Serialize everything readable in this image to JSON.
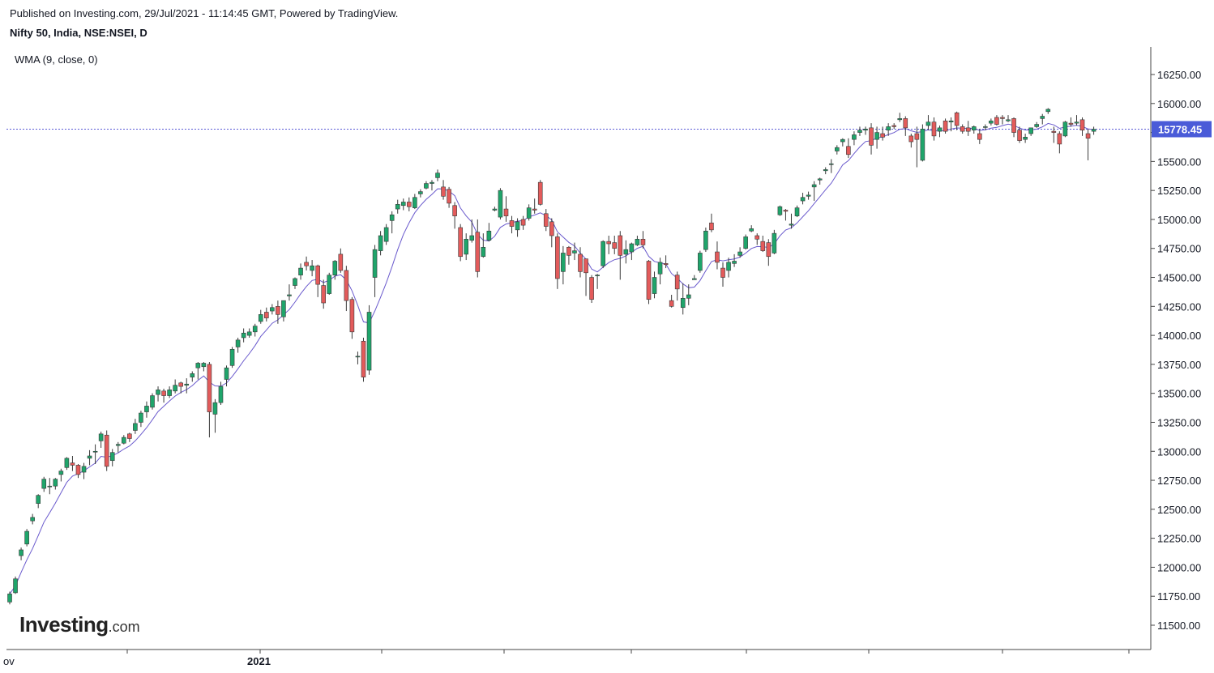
{
  "header": {
    "published": "Published on Investing.com, 29/Jul/2021 - 11:14:45 GMT, Powered by TradingView.",
    "instrument": "Nifty 50, India, NSE:NSEI, D",
    "indicator": "WMA (9, close, 0)"
  },
  "logo": {
    "main": "Investing",
    "suffix": ".com"
  },
  "colors": {
    "up": "#1fa56b",
    "down": "#e35b5b",
    "wick": "#3a3a3a",
    "wma": "#6a5acd",
    "price_line": "#5b5bd6",
    "price_label_bg": "#4a5bd8",
    "axis": "#444444",
    "text": "#131722"
  },
  "chart_data": {
    "type": "candlestick",
    "ylim": [
      11300,
      16500
    ],
    "y_ticks": [
      "16250.00",
      "16000.00",
      "15750.00",
      "15500.00",
      "15250.00",
      "15000.00",
      "14750.00",
      "14500.00",
      "14250.00",
      "14000.00",
      "13750.00",
      "13500.00",
      "13250.00",
      "13000.00",
      "12750.00",
      "12500.00",
      "12250.00",
      "12000.00",
      "11750.00",
      "11500.00"
    ],
    "x_labels": [
      {
        "index": 0,
        "text": "ov"
      },
      {
        "index": 42,
        "text": "2021"
      }
    ],
    "last_price_label": "15778.45",
    "last_price": 15778.45,
    "candles": [
      [
        11700,
        11790,
        11680,
        11770
      ],
      [
        11780,
        11920,
        11770,
        11900
      ],
      [
        12100,
        12170,
        12060,
        12150
      ],
      [
        12200,
        12330,
        12180,
        12310
      ],
      [
        12400,
        12460,
        12370,
        12430
      ],
      [
        12550,
        12630,
        12510,
        12620
      ],
      [
        12680,
        12780,
        12650,
        12760
      ],
      [
        12700,
        12770,
        12630,
        12700
      ],
      [
        12700,
        12770,
        12670,
        12760
      ],
      [
        12800,
        12850,
        12740,
        12830
      ],
      [
        12860,
        12950,
        12840,
        12940
      ],
      [
        12900,
        12960,
        12830,
        12880
      ],
      [
        12880,
        12890,
        12770,
        12800
      ],
      [
        12820,
        12900,
        12760,
        12870
      ],
      [
        12940,
        13010,
        12880,
        12960
      ],
      [
        13000,
        13060,
        12890,
        13000
      ],
      [
        13090,
        13170,
        13030,
        13150
      ],
      [
        13140,
        13180,
        12830,
        12870
      ],
      [
        12920,
        13020,
        12870,
        12990
      ],
      [
        13050,
        13080,
        12990,
        13060
      ],
      [
        13070,
        13140,
        13060,
        13120
      ],
      [
        13150,
        13160,
        13080,
        13110
      ],
      [
        13180,
        13280,
        13150,
        13240
      ],
      [
        13250,
        13350,
        13210,
        13330
      ],
      [
        13340,
        13430,
        13290,
        13390
      ],
      [
        13380,
        13500,
        13360,
        13480
      ],
      [
        13490,
        13560,
        13430,
        13530
      ],
      [
        13520,
        13540,
        13420,
        13480
      ],
      [
        13480,
        13560,
        13460,
        13530
      ],
      [
        13520,
        13620,
        13500,
        13570
      ],
      [
        13590,
        13600,
        13500,
        13560
      ],
      [
        13570,
        13630,
        13500,
        13580
      ],
      [
        13640,
        13690,
        13600,
        13670
      ],
      [
        13720,
        13770,
        13620,
        13760
      ],
      [
        13730,
        13770,
        13690,
        13760
      ],
      [
        13750,
        13770,
        13120,
        13340
      ],
      [
        13320,
        13450,
        13160,
        13420
      ],
      [
        13420,
        13600,
        13400,
        13560
      ],
      [
        13620,
        13740,
        13560,
        13720
      ],
      [
        13740,
        13900,
        13720,
        13880
      ],
      [
        13900,
        13980,
        13850,
        13960
      ],
      [
        13980,
        14060,
        13940,
        14020
      ],
      [
        14000,
        14060,
        13980,
        14030
      ],
      [
        14030,
        14100,
        13990,
        14080
      ],
      [
        14120,
        14220,
        14100,
        14180
      ],
      [
        14200,
        14240,
        14120,
        14150
      ],
      [
        14210,
        14270,
        14180,
        14240
      ],
      [
        14250,
        14300,
        14100,
        14180
      ],
      [
        14160,
        14300,
        14120,
        14300
      ],
      [
        14340,
        14440,
        14300,
        14350
      ],
      [
        14430,
        14500,
        14400,
        14490
      ],
      [
        14520,
        14620,
        14480,
        14580
      ],
      [
        14630,
        14680,
        14560,
        14600
      ],
      [
        14560,
        14650,
        14510,
        14600
      ],
      [
        14600,
        14610,
        14330,
        14440
      ],
      [
        14430,
        14480,
        14230,
        14280
      ],
      [
        14360,
        14540,
        14350,
        14520
      ],
      [
        14520,
        14650,
        14480,
        14640
      ],
      [
        14700,
        14750,
        14540,
        14560
      ],
      [
        14560,
        14600,
        14210,
        14300
      ],
      [
        14310,
        14330,
        13970,
        14030
      ],
      [
        13820,
        13860,
        13750,
        13820
      ],
      [
        13950,
        13980,
        13600,
        13640
      ],
      [
        13700,
        14260,
        13660,
        14200
      ],
      [
        14500,
        14780,
        14330,
        14740
      ],
      [
        14730,
        14900,
        14690,
        14860
      ],
      [
        14810,
        14960,
        14780,
        14930
      ],
      [
        14990,
        15070,
        14880,
        15040
      ],
      [
        15090,
        15170,
        15050,
        15130
      ],
      [
        15120,
        15180,
        15080,
        15150
      ],
      [
        15150,
        15190,
        15070,
        15110
      ],
      [
        15100,
        15220,
        15090,
        15190
      ],
      [
        15220,
        15260,
        15190,
        15240
      ],
      [
        15270,
        15330,
        15260,
        15310
      ],
      [
        15310,
        15340,
        15250,
        15320
      ],
      [
        15360,
        15430,
        15330,
        15400
      ],
      [
        15280,
        15340,
        15170,
        15200
      ],
      [
        15260,
        15280,
        15100,
        15140
      ],
      [
        15120,
        15150,
        14920,
        15030
      ],
      [
        14930,
        14960,
        14640,
        14680
      ],
      [
        14700,
        14880,
        14650,
        14830
      ],
      [
        14820,
        15000,
        14800,
        14860
      ],
      [
        14890,
        15000,
        14500,
        14550
      ],
      [
        14680,
        14880,
        14670,
        14760
      ],
      [
        14820,
        14970,
        14810,
        14900
      ],
      [
        15080,
        15110,
        15070,
        15090
      ],
      [
        15020,
        15270,
        15000,
        15250
      ],
      [
        15090,
        15200,
        14980,
        15030
      ],
      [
        14990,
        15030,
        14880,
        14940
      ],
      [
        14910,
        15010,
        14850,
        14980
      ],
      [
        15000,
        15030,
        14910,
        14950
      ],
      [
        15010,
        15130,
        14990,
        15100
      ],
      [
        15090,
        15180,
        15050,
        15080
      ],
      [
        15320,
        15340,
        15120,
        15130
      ],
      [
        15050,
        15090,
        14900,
        14940
      ],
      [
        14980,
        15010,
        14760,
        14860
      ],
      [
        14850,
        14880,
        14400,
        14490
      ],
      [
        14550,
        14770,
        14440,
        14710
      ],
      [
        14760,
        14770,
        14610,
        14690
      ],
      [
        14710,
        14800,
        14650,
        14730
      ],
      [
        14700,
        14760,
        14500,
        14550
      ],
      [
        14660,
        14660,
        14340,
        14540
      ],
      [
        14500,
        14520,
        14280,
        14310
      ],
      [
        14520,
        14530,
        14400,
        14520
      ],
      [
        14600,
        14820,
        14580,
        14810
      ],
      [
        14810,
        14860,
        14700,
        14790
      ],
      [
        14800,
        14860,
        14700,
        14750
      ],
      [
        14860,
        14900,
        14480,
        14690
      ],
      [
        14700,
        14820,
        14620,
        14740
      ],
      [
        14720,
        14800,
        14650,
        14790
      ],
      [
        14780,
        14860,
        14770,
        14830
      ],
      [
        14830,
        14900,
        14750,
        14780
      ],
      [
        14640,
        14650,
        14270,
        14310
      ],
      [
        14360,
        14550,
        14320,
        14500
      ],
      [
        14530,
        14670,
        14440,
        14630
      ],
      [
        14620,
        14690,
        14580,
        14610
      ],
      [
        14300,
        14350,
        14240,
        14250
      ],
      [
        14520,
        14550,
        14300,
        14400
      ],
      [
        14240,
        14450,
        14180,
        14320
      ],
      [
        14320,
        14440,
        14260,
        14350
      ],
      [
        14480,
        14520,
        14480,
        14490
      ],
      [
        14560,
        14730,
        14540,
        14710
      ],
      [
        14740,
        14930,
        14720,
        14900
      ],
      [
        14970,
        15050,
        14890,
        14910
      ],
      [
        14720,
        14810,
        14570,
        14630
      ],
      [
        14580,
        14630,
        14420,
        14500
      ],
      [
        14560,
        14670,
        14500,
        14630
      ],
      [
        14620,
        14700,
        14590,
        14640
      ],
      [
        14690,
        14760,
        14670,
        14720
      ],
      [
        14750,
        14870,
        14740,
        14850
      ],
      [
        14900,
        14950,
        14890,
        14920
      ],
      [
        14860,
        14880,
        14780,
        14830
      ],
      [
        14810,
        14860,
        14720,
        14730
      ],
      [
        14800,
        14830,
        14600,
        14680
      ],
      [
        14710,
        14910,
        14700,
        14880
      ],
      [
        15040,
        15120,
        15030,
        15110
      ],
      [
        15080,
        15090,
        14990,
        15070
      ],
      [
        14950,
        15050,
        14920,
        14960
      ],
      [
        15030,
        15120,
        15020,
        15100
      ],
      [
        15160,
        15230,
        15130,
        15190
      ],
      [
        15200,
        15240,
        15170,
        15210
      ],
      [
        15280,
        15330,
        15160,
        15300
      ],
      [
        15340,
        15360,
        15300,
        15350
      ],
      [
        15420,
        15450,
        15390,
        15430
      ],
      [
        15480,
        15520,
        15400,
        15480
      ],
      [
        15590,
        15640,
        15560,
        15620
      ],
      [
        15670,
        15700,
        15630,
        15690
      ],
      [
        15630,
        15700,
        15530,
        15560
      ],
      [
        15690,
        15760,
        15640,
        15730
      ],
      [
        15750,
        15800,
        15720,
        15770
      ],
      [
        15770,
        15800,
        15730,
        15780
      ],
      [
        15790,
        15830,
        15560,
        15640
      ],
      [
        15690,
        15800,
        15610,
        15750
      ],
      [
        15740,
        15800,
        15680,
        15710
      ],
      [
        15770,
        15830,
        15720,
        15800
      ],
      [
        15810,
        15830,
        15780,
        15800
      ],
      [
        15860,
        15920,
        15840,
        15870
      ],
      [
        15870,
        15890,
        15720,
        15790
      ],
      [
        15720,
        15740,
        15620,
        15670
      ],
      [
        15740,
        15800,
        15450,
        15690
      ],
      [
        15510,
        15820,
        15500,
        15780
      ],
      [
        15810,
        15900,
        15770,
        15840
      ],
      [
        15840,
        15880,
        15680,
        15720
      ],
      [
        15760,
        15810,
        15710,
        15790
      ],
      [
        15850,
        15870,
        15740,
        15760
      ],
      [
        15840,
        15880,
        15760,
        15850
      ],
      [
        15920,
        15930,
        15770,
        15810
      ],
      [
        15800,
        15820,
        15740,
        15760
      ],
      [
        15790,
        15850,
        15720,
        15760
      ],
      [
        15770,
        15810,
        15740,
        15800
      ],
      [
        15740,
        15780,
        15650,
        15690
      ],
      [
        15800,
        15820,
        15770,
        15800
      ],
      [
        15830,
        15870,
        15810,
        15850
      ],
      [
        15880,
        15900,
        15810,
        15820
      ],
      [
        15880,
        15900,
        15820,
        15870
      ],
      [
        15850,
        15900,
        15840,
        15860
      ],
      [
        15870,
        15880,
        15710,
        15750
      ],
      [
        15770,
        15800,
        15660,
        15680
      ],
      [
        15690,
        15740,
        15660,
        15710
      ],
      [
        15740,
        15790,
        15720,
        15790
      ],
      [
        15800,
        15840,
        15790,
        15820
      ],
      [
        15870,
        15910,
        15820,
        15890
      ],
      [
        15930,
        15960,
        15910,
        15950
      ],
      [
        15760,
        15800,
        15660,
        15750
      ],
      [
        15740,
        15760,
        15570,
        15650
      ],
      [
        15720,
        15850,
        15710,
        15840
      ],
      [
        15830,
        15880,
        15800,
        15820
      ],
      [
        15830,
        15900,
        15810,
        15840
      ],
      [
        15860,
        15880,
        15720,
        15770
      ],
      [
        15740,
        15780,
        15510,
        15700
      ],
      [
        15760,
        15800,
        15730,
        15778
      ]
    ]
  }
}
